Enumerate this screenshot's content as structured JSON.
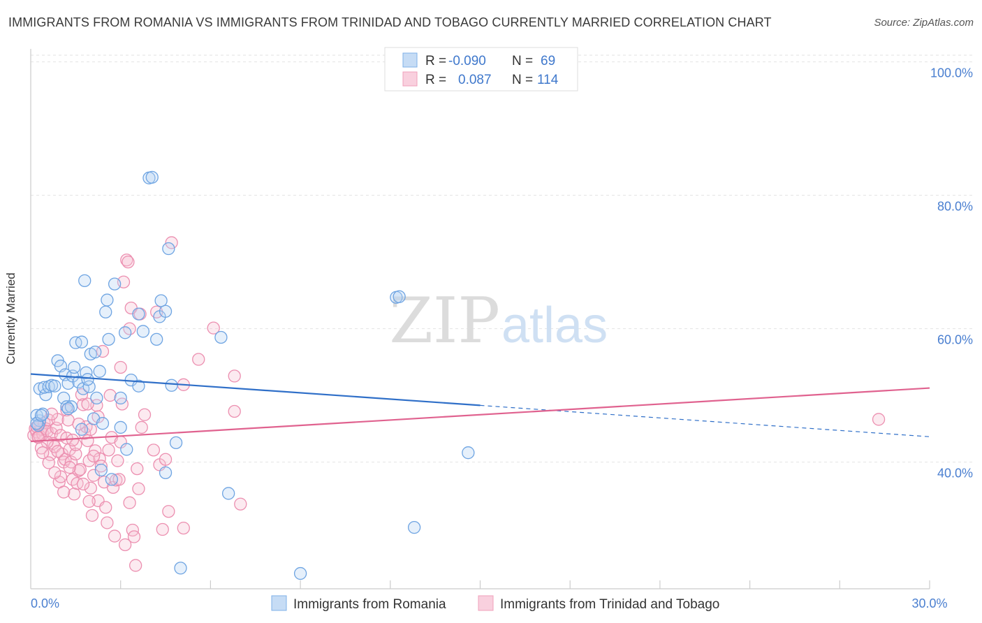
{
  "title": "IMMIGRANTS FROM ROMANIA VS IMMIGRANTS FROM TRINIDAD AND TOBAGO CURRENTLY MARRIED CORRELATION CHART",
  "source": "Source: ZipAtlas.com",
  "colors": {
    "blue": "#7fb0e8",
    "blue_line": "#2f6fc8",
    "pink": "#f0a0bb",
    "pink_line": "#e0628f",
    "axis_text": "#4a7fd0"
  },
  "legend_top": [
    {
      "r_label": "R =",
      "r_value": "-0.090",
      "n_label": "N =",
      "n_value": "69"
    },
    {
      "r_label": "R =",
      "r_value": "0.087",
      "n_label": "N =",
      "n_value": "114"
    }
  ],
  "legend_bottom": [
    "Immigrants from Romania",
    "Immigrants from Trinidad and Tobago"
  ],
  "watermark": {
    "zip": "ZIP",
    "atlas": "atlas"
  },
  "chart_data": {
    "type": "scatter",
    "xlabel": "",
    "ylabel": "Currently Married",
    "xlim": [
      0,
      30
    ],
    "ylim": [
      21,
      103
    ],
    "x_tick_labels": [
      "0.0%",
      "30.0%"
    ],
    "y_ticks": [
      40,
      60,
      80,
      100
    ],
    "y_tick_labels": [
      "40.0%",
      "60.0%",
      "80.0%",
      "100.0%"
    ],
    "series": [
      {
        "name": "Immigrants from Romania",
        "color": "#7fb0e8",
        "trend": {
          "x": [
            0,
            15
          ],
          "y": [
            53.2,
            48.5
          ],
          "dashed_to": [
            30,
            43.8
          ]
        },
        "points": [
          [
            0.3,
            46.2
          ],
          [
            0.2,
            47.0
          ],
          [
            0.4,
            47.2
          ],
          [
            0.25,
            45.5
          ],
          [
            0.3,
            51.0
          ],
          [
            0.5,
            50.1
          ],
          [
            0.45,
            51.2
          ],
          [
            0.6,
            51.3
          ],
          [
            0.7,
            51.5
          ],
          [
            0.8,
            51.4
          ],
          [
            0.9,
            55.2
          ],
          [
            1.0,
            54.4
          ],
          [
            1.1,
            49.6
          ],
          [
            1.15,
            53.1
          ],
          [
            1.2,
            48.3
          ],
          [
            1.25,
            51.8
          ],
          [
            1.35,
            48.3
          ],
          [
            1.4,
            52.9
          ],
          [
            1.45,
            54.2
          ],
          [
            1.5,
            57.9
          ],
          [
            1.6,
            52.0
          ],
          [
            1.7,
            44.9
          ],
          [
            1.75,
            51.0
          ],
          [
            1.7,
            58.0
          ],
          [
            1.8,
            67.2
          ],
          [
            1.85,
            53.4
          ],
          [
            1.95,
            51.3
          ],
          [
            1.9,
            52.4
          ],
          [
            2.0,
            56.2
          ],
          [
            2.1,
            46.5
          ],
          [
            2.15,
            56.5
          ],
          [
            2.2,
            49.6
          ],
          [
            2.3,
            53.6
          ],
          [
            2.35,
            38.8
          ],
          [
            2.4,
            45.8
          ],
          [
            2.5,
            62.5
          ],
          [
            2.55,
            64.3
          ],
          [
            2.6,
            58.4
          ],
          [
            2.7,
            37.4
          ],
          [
            2.8,
            66.7
          ],
          [
            3.0,
            49.6
          ],
          [
            3.0,
            45.2
          ],
          [
            3.15,
            59.4
          ],
          [
            3.2,
            41.9
          ],
          [
            3.35,
            52.3
          ],
          [
            3.6,
            51.4
          ],
          [
            3.6,
            62.2
          ],
          [
            3.75,
            59.6
          ],
          [
            3.95,
            82.6
          ],
          [
            4.05,
            82.7
          ],
          [
            4.2,
            58.4
          ],
          [
            4.3,
            61.8
          ],
          [
            4.35,
            64.2
          ],
          [
            4.5,
            62.6
          ],
          [
            4.5,
            38.4
          ],
          [
            4.6,
            72.0
          ],
          [
            4.7,
            51.5
          ],
          [
            4.85,
            42.9
          ],
          [
            5.0,
            24.1
          ],
          [
            6.6,
            35.3
          ],
          [
            6.35,
            58.7
          ],
          [
            9.0,
            23.3
          ],
          [
            12.2,
            64.7
          ],
          [
            12.3,
            64.8
          ],
          [
            14.6,
            41.4
          ],
          [
            12.8,
            30.2
          ],
          [
            0.2,
            45.8
          ],
          [
            0.35,
            47.0
          ],
          [
            1.25,
            48.0
          ]
        ]
      },
      {
        "name": "Immigrants from Trinidad and Tobago",
        "color": "#f0a0bb",
        "trend": {
          "x": [
            0,
            30
          ],
          "y": [
            43.1,
            51.1
          ]
        },
        "points": [
          [
            0.1,
            44.0
          ],
          [
            0.15,
            45.0
          ],
          [
            0.2,
            44.5
          ],
          [
            0.25,
            43.8
          ],
          [
            0.3,
            45.6
          ],
          [
            0.35,
            44.9
          ],
          [
            0.4,
            44.2
          ],
          [
            0.2,
            45.3
          ],
          [
            0.3,
            43.9
          ],
          [
            0.45,
            45.9
          ],
          [
            0.5,
            45.0
          ],
          [
            0.55,
            44.6
          ],
          [
            0.6,
            46.3
          ],
          [
            0.65,
            41.1
          ],
          [
            0.7,
            44.3
          ],
          [
            0.75,
            42.8
          ],
          [
            0.8,
            42.3
          ],
          [
            0.85,
            45.1
          ],
          [
            0.9,
            46.4
          ],
          [
            0.95,
            37.0
          ],
          [
            1.0,
            37.8
          ],
          [
            1.05,
            41.2
          ],
          [
            1.1,
            40.0
          ],
          [
            1.15,
            40.4
          ],
          [
            1.2,
            47.8
          ],
          [
            1.25,
            46.3
          ],
          [
            1.3,
            41.9
          ],
          [
            1.35,
            40.0
          ],
          [
            1.4,
            37.4
          ],
          [
            1.45,
            35.2
          ],
          [
            1.5,
            41.2
          ],
          [
            1.55,
            36.8
          ],
          [
            1.6,
            38.7
          ],
          [
            1.65,
            38.9
          ],
          [
            1.7,
            50.1
          ],
          [
            1.75,
            48.6
          ],
          [
            1.8,
            44.3
          ],
          [
            1.85,
            45.3
          ],
          [
            1.9,
            43.2
          ],
          [
            1.95,
            40.2
          ],
          [
            2.0,
            36.1
          ],
          [
            2.05,
            32.0
          ],
          [
            2.1,
            38.0
          ],
          [
            2.15,
            41.7
          ],
          [
            2.2,
            48.5
          ],
          [
            2.25,
            34.2
          ],
          [
            2.3,
            40.5
          ],
          [
            2.35,
            39.4
          ],
          [
            2.4,
            56.6
          ],
          [
            2.45,
            37.0
          ],
          [
            2.5,
            33.2
          ],
          [
            2.55,
            30.9
          ],
          [
            2.6,
            41.8
          ],
          [
            2.7,
            43.7
          ],
          [
            2.75,
            36.2
          ],
          [
            2.8,
            28.9
          ],
          [
            2.85,
            37.3
          ],
          [
            2.9,
            40.2
          ],
          [
            3.0,
            54.2
          ],
          [
            3.05,
            48.7
          ],
          [
            3.1,
            67.0
          ],
          [
            3.15,
            27.6
          ],
          [
            3.2,
            70.3
          ],
          [
            3.25,
            70.0
          ],
          [
            3.3,
            33.9
          ],
          [
            3.35,
            63.1
          ],
          [
            3.4,
            29.8
          ],
          [
            3.45,
            28.8
          ],
          [
            3.5,
            24.5
          ],
          [
            3.55,
            39.0
          ],
          [
            3.6,
            36.0
          ],
          [
            3.65,
            62.2
          ],
          [
            3.7,
            45.2
          ],
          [
            3.8,
            47.1
          ],
          [
            4.1,
            41.8
          ],
          [
            4.2,
            62.5
          ],
          [
            4.3,
            39.6
          ],
          [
            4.4,
            29.9
          ],
          [
            4.5,
            40.4
          ],
          [
            4.6,
            32.6
          ],
          [
            4.7,
            72.9
          ],
          [
            5.1,
            51.6
          ],
          [
            5.1,
            30.1
          ],
          [
            5.6,
            55.4
          ],
          [
            6.1,
            60.1
          ],
          [
            6.8,
            47.6
          ],
          [
            6.8,
            52.9
          ],
          [
            7.0,
            33.7
          ],
          [
            28.3,
            46.4
          ],
          [
            1.0,
            44.0
          ],
          [
            1.2,
            43.6
          ],
          [
            0.55,
            43.0
          ],
          [
            0.35,
            42.1
          ],
          [
            0.9,
            41.6
          ],
          [
            1.3,
            39.2
          ],
          [
            1.5,
            42.6
          ],
          [
            2.0,
            44.9
          ],
          [
            2.25,
            46.8
          ],
          [
            1.75,
            36.7
          ],
          [
            2.95,
            37.4
          ],
          [
            0.8,
            38.4
          ],
          [
            1.1,
            35.5
          ],
          [
            0.6,
            39.9
          ],
          [
            1.4,
            43.3
          ],
          [
            1.9,
            48.7
          ],
          [
            2.65,
            50.0
          ],
          [
            3.0,
            43.0
          ],
          [
            0.25,
            43.7
          ],
          [
            0.4,
            41.4
          ],
          [
            0.7,
            47.2
          ],
          [
            1.6,
            45.7
          ],
          [
            2.1,
            40.9
          ],
          [
            3.3,
            60.0
          ],
          [
            1.95,
            34.1
          ]
        ]
      }
    ]
  }
}
